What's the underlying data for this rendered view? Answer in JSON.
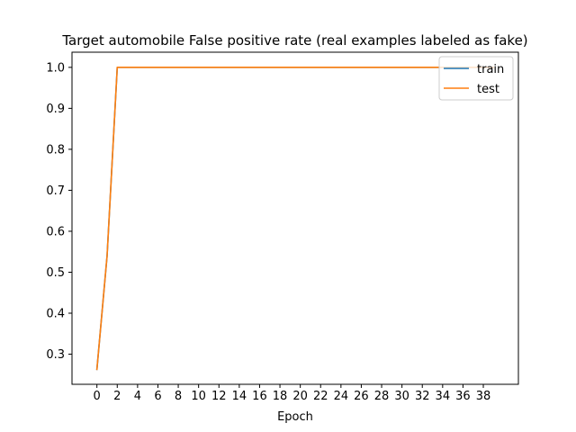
{
  "chart_data": {
    "type": "line",
    "title": "Target automobile False positive rate (real examples labeled as fake)",
    "xlabel": "Epoch",
    "ylabel": "",
    "xlim": [
      -2.45,
      41.45
    ],
    "ylim": [
      0.2265,
      1.037
    ],
    "xticks": [
      0,
      2,
      4,
      6,
      8,
      10,
      12,
      14,
      16,
      18,
      20,
      22,
      24,
      26,
      28,
      30,
      32,
      34,
      36,
      38
    ],
    "xtick_labels": [
      "0",
      "2",
      "4",
      "6",
      "8",
      "10",
      "12",
      "14",
      "16",
      "18",
      "20",
      "22",
      "24",
      "26",
      "28",
      "30",
      "32",
      "34",
      "36",
      "38"
    ],
    "yticks": [
      0.3,
      0.4,
      0.5,
      0.6,
      0.7,
      0.8,
      0.9,
      1.0
    ],
    "ytick_labels": [
      "0.3",
      "0.4",
      "0.5",
      "0.6",
      "0.7",
      "0.8",
      "0.9",
      "1.0"
    ],
    "grid": false,
    "legend_position": "top-right",
    "x": [
      0,
      1,
      2,
      3,
      4,
      5,
      6,
      7,
      8,
      9,
      10,
      11,
      12,
      13,
      14,
      15,
      16,
      17,
      18,
      19,
      20,
      21,
      22,
      23,
      24,
      25,
      26,
      27,
      28,
      29,
      30,
      31,
      32,
      33,
      34,
      35,
      36,
      37,
      38,
      39
    ],
    "series": [
      {
        "name": "train",
        "color": "#1f77b4",
        "values": [
          0.263,
          0.54,
          1.0,
          1.0,
          1.0,
          1.0,
          1.0,
          1.0,
          1.0,
          1.0,
          1.0,
          1.0,
          1.0,
          1.0,
          1.0,
          1.0,
          1.0,
          1.0,
          1.0,
          1.0,
          1.0,
          1.0,
          1.0,
          1.0,
          1.0,
          1.0,
          1.0,
          1.0,
          1.0,
          1.0,
          1.0,
          1.0,
          1.0,
          1.0,
          1.0,
          1.0,
          1.0,
          1.0,
          1.0,
          1.0
        ]
      },
      {
        "name": "test",
        "color": "#ff7f0e",
        "values": [
          0.263,
          0.54,
          1.0,
          1.0,
          1.0,
          1.0,
          1.0,
          1.0,
          1.0,
          1.0,
          1.0,
          1.0,
          1.0,
          1.0,
          1.0,
          1.0,
          1.0,
          1.0,
          1.0,
          1.0,
          1.0,
          1.0,
          1.0,
          1.0,
          1.0,
          1.0,
          1.0,
          1.0,
          1.0,
          1.0,
          1.0,
          1.0,
          1.0,
          1.0,
          1.0,
          1.0,
          1.0,
          1.0,
          1.0,
          1.0
        ]
      }
    ]
  }
}
